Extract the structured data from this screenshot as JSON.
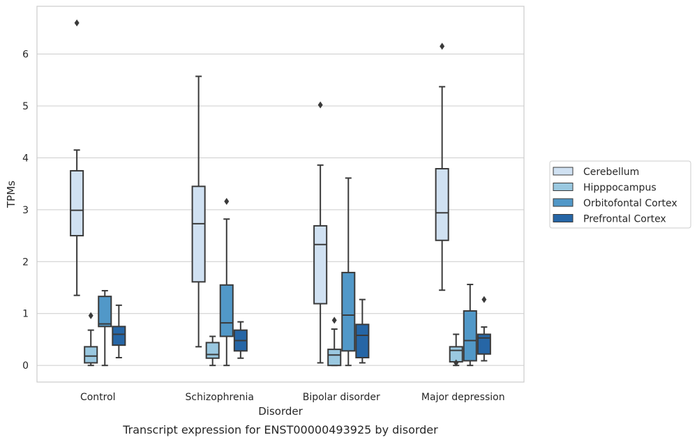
{
  "chart_data": {
    "type": "box",
    "title": "",
    "caption": "Transcript expression for ENST00000493925 by disorder",
    "xlabel": "Disorder",
    "ylabel": "TPMs",
    "categories": [
      "Control",
      "Schizophrenia",
      "Bipolar disorder",
      "Major depression"
    ],
    "ylim": [
      -0.32,
      6.92
    ],
    "yticks": [
      0,
      1,
      2,
      3,
      4,
      5,
      6
    ],
    "grid": "horizontal",
    "legend_position": "right",
    "series": [
      {
        "name": "Cerebellum",
        "color": "#d0e1f2",
        "boxes": [
          {
            "whislo": 1.35,
            "q1": 2.5,
            "med": 2.99,
            "q3": 3.75,
            "whishi": 4.15,
            "fliers": [
              6.6
            ]
          },
          {
            "whislo": 0.36,
            "q1": 1.61,
            "med": 2.73,
            "q3": 3.45,
            "whishi": 5.57,
            "fliers": []
          },
          {
            "whislo": 0.05,
            "q1": 1.19,
            "med": 2.33,
            "q3": 2.69,
            "whishi": 3.86,
            "fliers": [
              5.02
            ]
          },
          {
            "whislo": 1.45,
            "q1": 2.41,
            "med": 2.94,
            "q3": 3.79,
            "whishi": 5.37,
            "fliers": [
              6.15
            ]
          }
        ]
      },
      {
        "name": "Hipppocampus",
        "color": "#9ac8e0",
        "boxes": [
          {
            "whislo": 0.0,
            "q1": 0.05,
            "med": 0.18,
            "q3": 0.36,
            "whishi": 0.68,
            "fliers": [
              0.96
            ]
          },
          {
            "whislo": 0.0,
            "q1": 0.14,
            "med": 0.21,
            "q3": 0.44,
            "whishi": 0.56,
            "fliers": []
          },
          {
            "whislo": 0.0,
            "q1": 0.0,
            "med": 0.2,
            "q3": 0.31,
            "whishi": 0.7,
            "fliers": [
              0.87
            ]
          },
          {
            "whislo": 0.0,
            "q1": 0.07,
            "med": 0.29,
            "q3": 0.36,
            "whishi": 0.6,
            "fliers": [
              0.05
            ]
          }
        ]
      },
      {
        "name": "Orbitofontal Cortex",
        "color": "#5198c8",
        "boxes": [
          {
            "whislo": 0.0,
            "q1": 0.75,
            "med": 0.8,
            "q3": 1.33,
            "whishi": 1.44,
            "fliers": []
          },
          {
            "whislo": 0.0,
            "q1": 0.56,
            "med": 0.82,
            "q3": 1.55,
            "whishi": 2.82,
            "fliers": [
              3.16
            ]
          },
          {
            "whislo": 0.0,
            "q1": 0.28,
            "med": 0.97,
            "q3": 1.79,
            "whishi": 3.61,
            "fliers": []
          },
          {
            "whislo": 0.0,
            "q1": 0.09,
            "med": 0.48,
            "q3": 1.05,
            "whishi": 1.56,
            "fliers": []
          }
        ]
      },
      {
        "name": "Prefrontal Cortex",
        "color": "#2666a6",
        "boxes": [
          {
            "whislo": 0.15,
            "q1": 0.39,
            "med": 0.6,
            "q3": 0.75,
            "whishi": 1.16,
            "fliers": []
          },
          {
            "whislo": 0.14,
            "q1": 0.28,
            "med": 0.48,
            "q3": 0.68,
            "whishi": 0.84,
            "fliers": []
          },
          {
            "whislo": 0.05,
            "q1": 0.15,
            "med": 0.58,
            "q3": 0.79,
            "whishi": 1.27,
            "fliers": []
          },
          {
            "whislo": 0.09,
            "q1": 0.22,
            "med": 0.53,
            "q3": 0.6,
            "whishi": 0.74,
            "fliers": [
              1.27
            ]
          }
        ]
      }
    ]
  }
}
